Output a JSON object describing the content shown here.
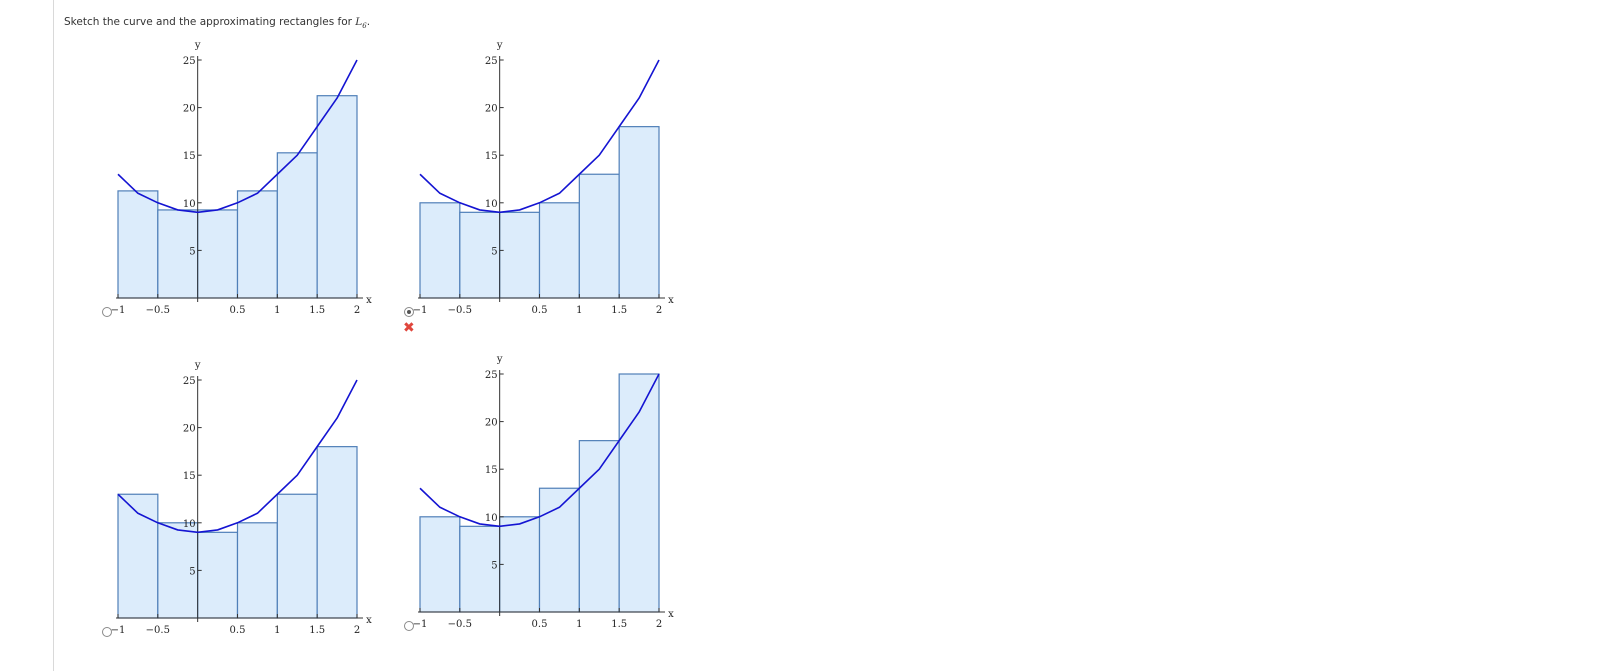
{
  "prompt": {
    "text_before": "Sketch the curve and the approximating rectangles for ",
    "var": "L",
    "sub": "6",
    "text_after": "."
  },
  "colors": {
    "rect_fill": "#dcecfb",
    "rect_stroke": "#4f7fb8",
    "curve": "#1414d2",
    "axis": "#333333",
    "wrong": "#e0463c"
  },
  "options": [
    {
      "selected": false,
      "marked_wrong": false
    },
    {
      "selected": true,
      "marked_wrong": true
    },
    {
      "selected": false,
      "marked_wrong": false
    },
    {
      "selected": false,
      "marked_wrong": false
    }
  ],
  "chart_data": [
    {
      "type": "bar",
      "xlabel": "x",
      "ylabel": "y",
      "xlim": [
        -1,
        2
      ],
      "ylim": [
        0,
        25
      ],
      "x_ticks": [
        "-1",
        "-0.5",
        "0.5",
        "1",
        "1.5",
        "2"
      ],
      "y_ticks": [
        "5",
        "10",
        "15",
        "20",
        "25"
      ],
      "x_intervals": [
        [
          -1,
          -0.5
        ],
        [
          -0.5,
          0
        ],
        [
          0,
          0.5
        ],
        [
          0.5,
          1
        ],
        [
          1,
          1.5
        ],
        [
          1.5,
          2
        ]
      ],
      "values": [
        11.25,
        9.25,
        9.25,
        11.25,
        15.25,
        21.25
      ],
      "curve": {
        "samples_x": [
          -1,
          -0.75,
          -0.5,
          -0.25,
          0,
          0.25,
          0.5,
          0.75,
          1,
          1.25,
          1.5,
          1.75,
          2
        ],
        "samples_y": [
          13,
          11,
          10,
          9.25,
          9,
          9.25,
          10,
          11,
          13,
          15,
          18,
          21,
          25
        ]
      }
    },
    {
      "type": "bar",
      "xlabel": "x",
      "ylabel": "y",
      "xlim": [
        -1,
        2
      ],
      "ylim": [
        0,
        25
      ],
      "x_ticks": [
        "-1",
        "-0.5",
        "0.5",
        "1",
        "1.5",
        "2"
      ],
      "y_ticks": [
        "5",
        "10",
        "15",
        "20",
        "25"
      ],
      "x_intervals": [
        [
          -1,
          -0.5
        ],
        [
          -0.5,
          0
        ],
        [
          0,
          0.5
        ],
        [
          0.5,
          1
        ],
        [
          1,
          1.5
        ],
        [
          1.5,
          2
        ]
      ],
      "values": [
        10,
        9,
        9,
        10,
        13,
        18
      ],
      "curve": {
        "samples_x": [
          -1,
          -0.75,
          -0.5,
          -0.25,
          0,
          0.25,
          0.5,
          0.75,
          1,
          1.25,
          1.5,
          1.75,
          2
        ],
        "samples_y": [
          13,
          11,
          10,
          9.25,
          9,
          9.25,
          10,
          11,
          13,
          15,
          18,
          21,
          25
        ]
      }
    },
    {
      "type": "bar",
      "xlabel": "x",
      "ylabel": "y",
      "xlim": [
        -1,
        2
      ],
      "ylim": [
        0,
        25
      ],
      "x_ticks": [
        "-1",
        "-0.5",
        "0.5",
        "1",
        "1.5",
        "2"
      ],
      "y_ticks": [
        "5",
        "10",
        "15",
        "20",
        "25"
      ],
      "x_intervals": [
        [
          -1,
          -0.5
        ],
        [
          -0.5,
          0
        ],
        [
          0,
          0.5
        ],
        [
          0.5,
          1
        ],
        [
          1,
          1.5
        ],
        [
          1.5,
          2
        ]
      ],
      "values": [
        13,
        10,
        9,
        10,
        13,
        18
      ],
      "curve": {
        "samples_x": [
          -1,
          -0.75,
          -0.5,
          -0.25,
          0,
          0.25,
          0.5,
          0.75,
          1,
          1.25,
          1.5,
          1.75,
          2
        ],
        "samples_y": [
          13,
          11,
          10,
          9.25,
          9,
          9.25,
          10,
          11,
          13,
          15,
          18,
          21,
          25
        ]
      }
    },
    {
      "type": "bar",
      "xlabel": "x",
      "ylabel": "y",
      "xlim": [
        -1,
        2
      ],
      "ylim": [
        0,
        25
      ],
      "x_ticks": [
        "-1",
        "-0.5",
        "0.5",
        "1",
        "1.5",
        "2"
      ],
      "y_ticks": [
        "5",
        "10",
        "15",
        "20",
        "25"
      ],
      "x_intervals": [
        [
          -1,
          -0.5
        ],
        [
          -0.5,
          0
        ],
        [
          0,
          0.5
        ],
        [
          0.5,
          1
        ],
        [
          1,
          1.5
        ],
        [
          1.5,
          2
        ]
      ],
      "values": [
        10,
        9,
        10,
        13,
        18,
        25
      ],
      "curve": {
        "samples_x": [
          -1,
          -0.75,
          -0.5,
          -0.25,
          0,
          0.25,
          0.5,
          0.75,
          1,
          1.25,
          1.5,
          1.75,
          2
        ],
        "samples_y": [
          13,
          11,
          10,
          9.25,
          9,
          9.25,
          10,
          11,
          13,
          15,
          18,
          21,
          25
        ]
      }
    }
  ]
}
